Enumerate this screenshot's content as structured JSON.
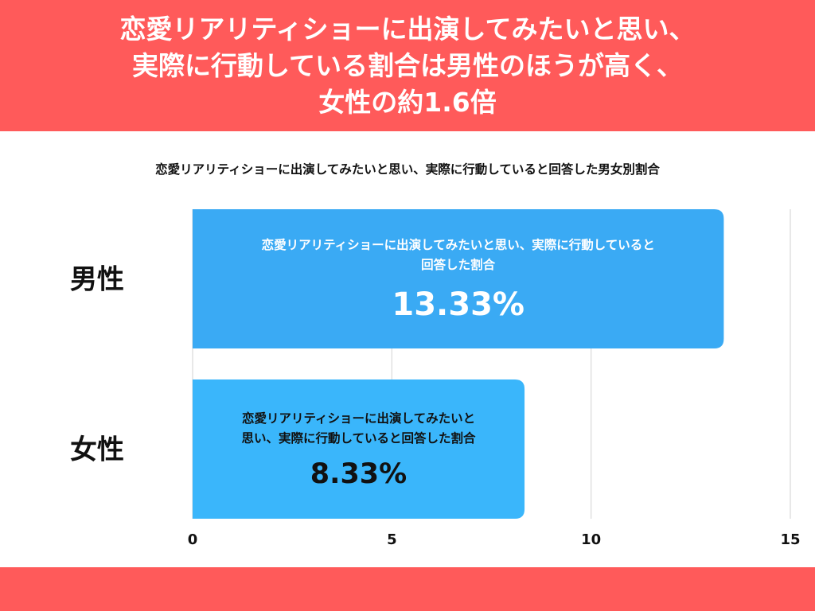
{
  "header": {
    "title_lines": [
      "恋愛リアリティショーに出演してみたいと思い、",
      "実際に行動している割合は男性のほうが高く、",
      "女性の約1.6倍"
    ]
  },
  "chart_data": {
    "type": "bar",
    "orientation": "horizontal",
    "title": "恋愛リアリティショーに出演してみたいと思い、実際に行動していると回答した男女別割合",
    "categories": [
      "男性",
      "女性"
    ],
    "values": [
      13.33,
      8.33
    ],
    "value_labels": [
      "13.33%",
      "8.33%"
    ],
    "bar_captions": [
      [
        "恋愛リアリティショーに出演してみたいと思い、実際に行動していると",
        "回答した割合"
      ],
      [
        "恋愛リアリティショーに出演してみたいと",
        "思い、実際に行動していると回答した割合"
      ]
    ],
    "x_ticks": [
      0,
      5,
      10,
      15
    ],
    "xlim": [
      0,
      15
    ],
    "grid": true,
    "colors": {
      "bars": [
        "#3aaaf4",
        "#3ab6fb"
      ],
      "male_text": "#ffffff",
      "female_text": "#111111",
      "accent": "#ff5a5a"
    }
  }
}
